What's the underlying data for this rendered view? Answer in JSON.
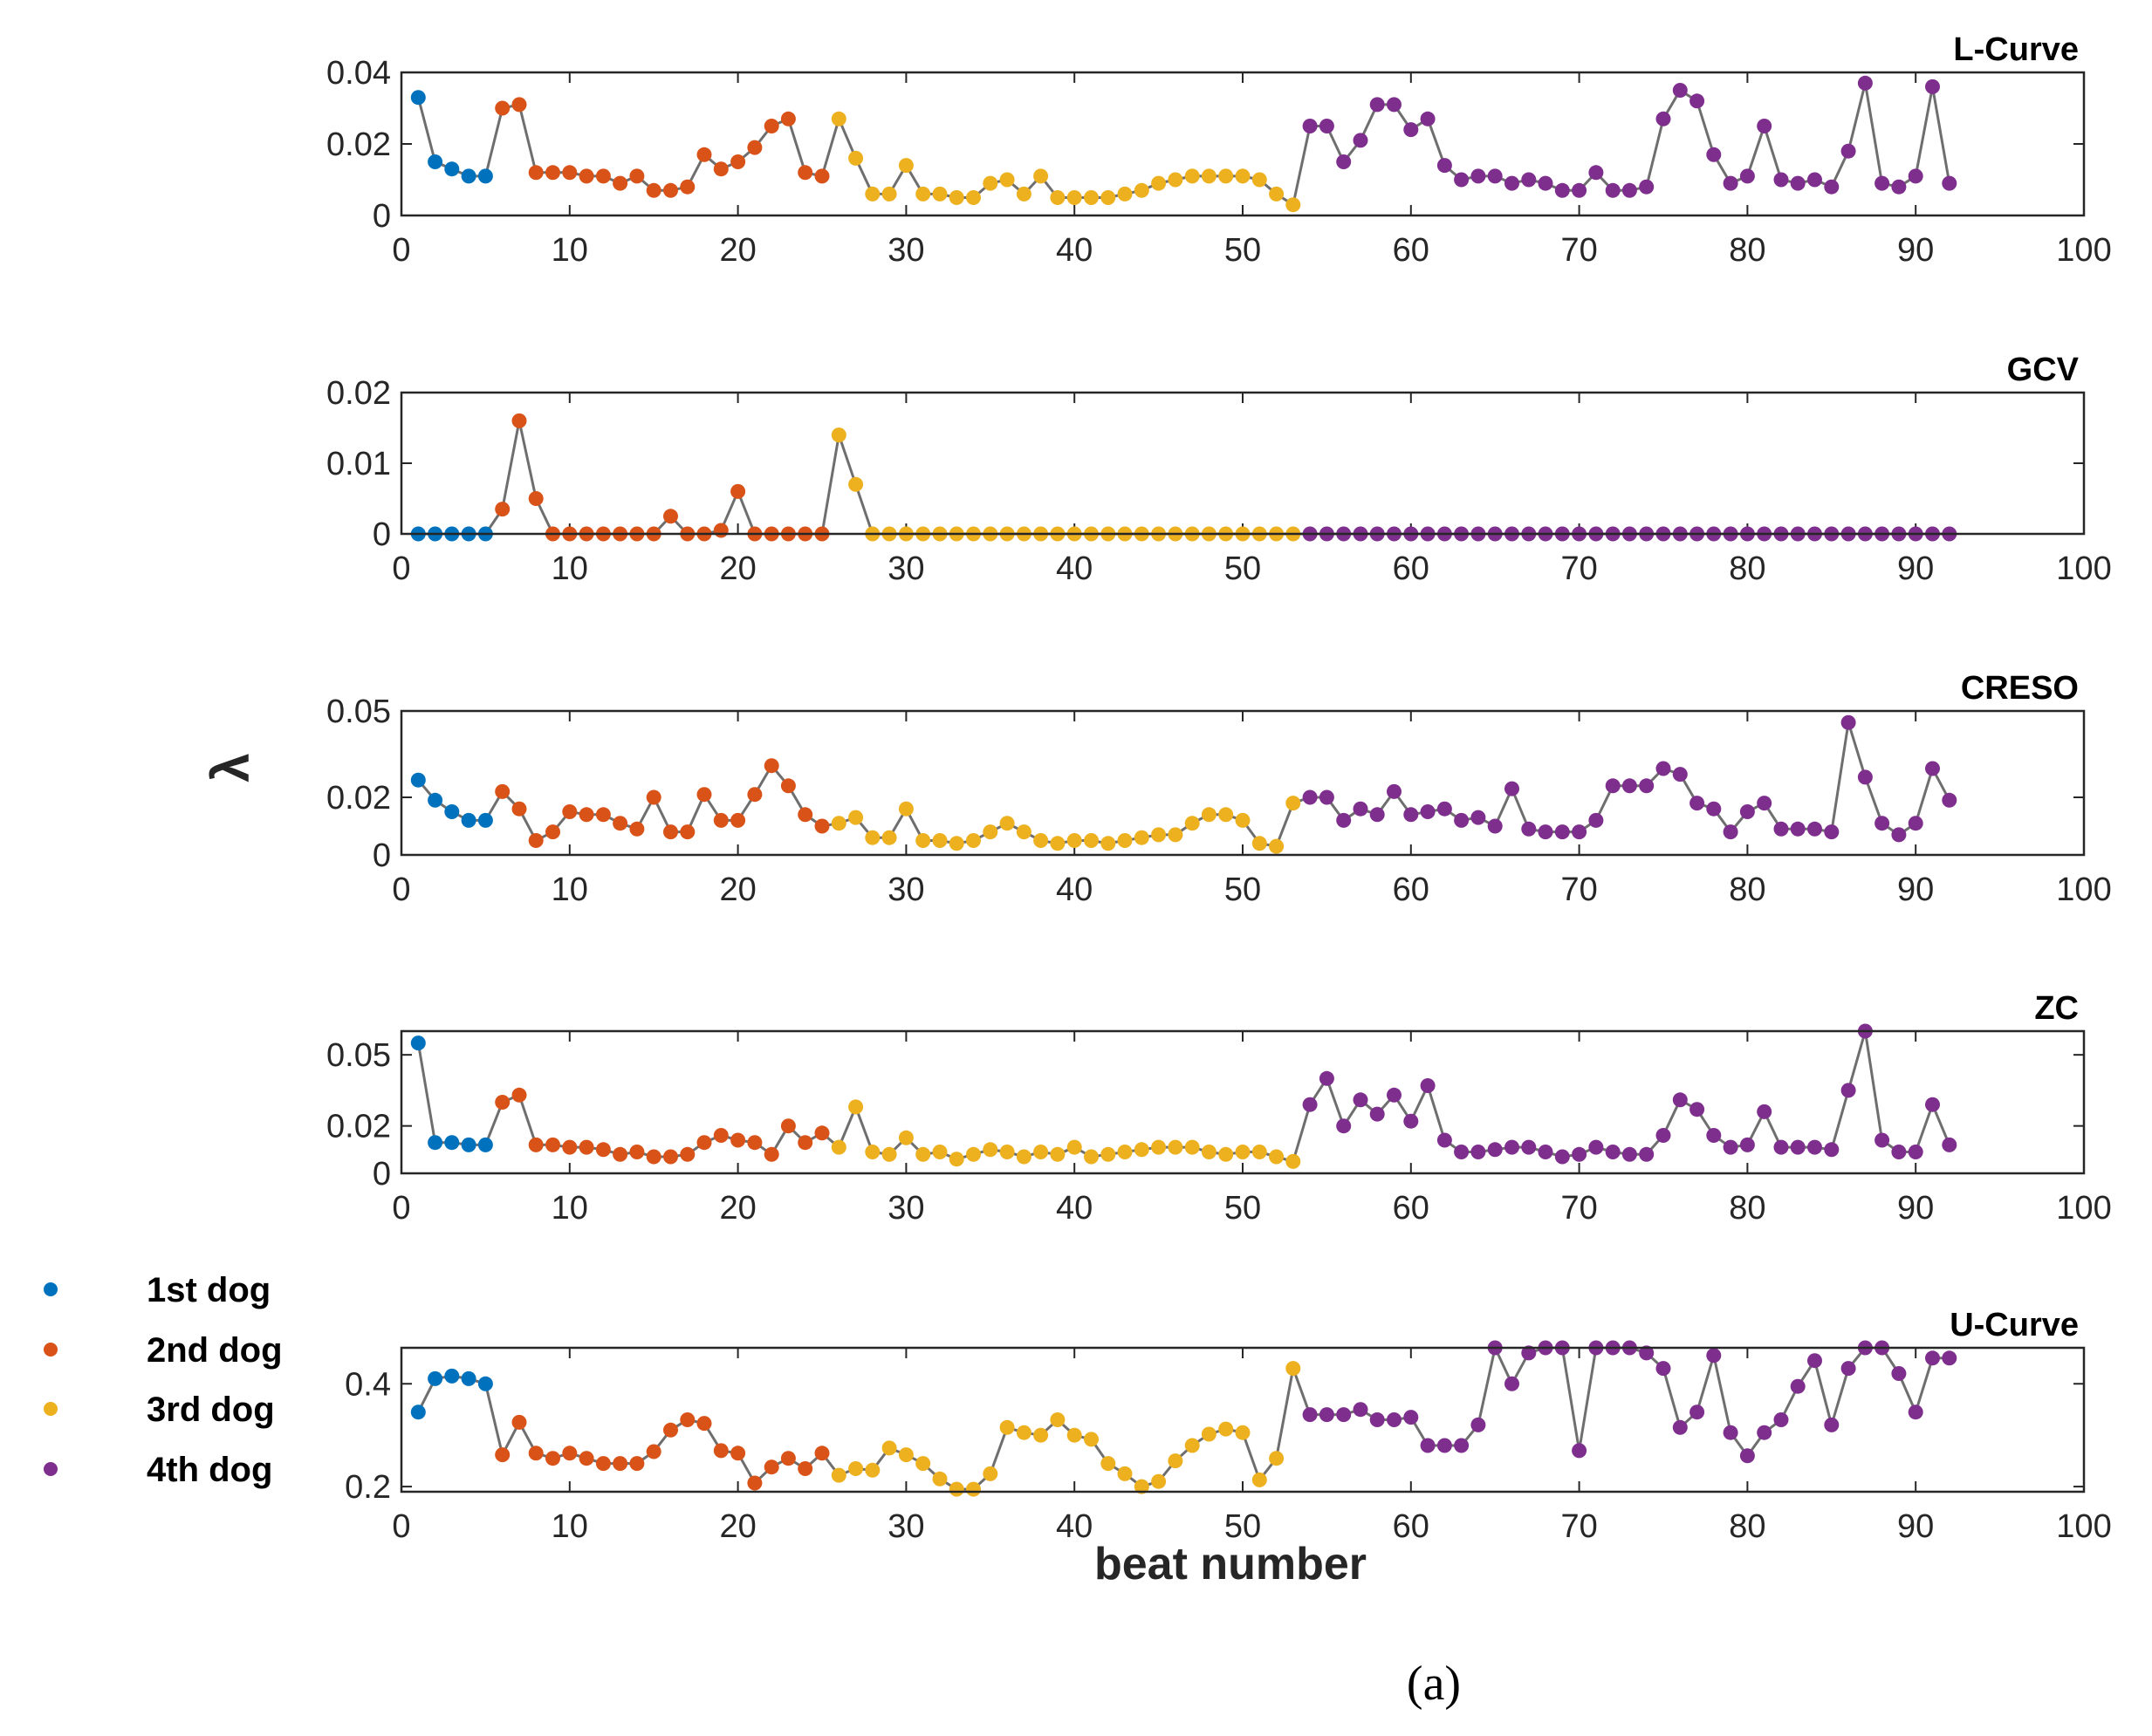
{
  "chart_data": {
    "type": "line",
    "xlabel": "beat number",
    "ylabel": "λ",
    "caption": "(a)",
    "x_ticks": [
      "0",
      "10",
      "20",
      "30",
      "40",
      "50",
      "60",
      "70",
      "80",
      "90",
      "100"
    ],
    "xlim": [
      0,
      100
    ],
    "legend": {
      "placement": "left",
      "entries": [
        {
          "name": "1st dog",
          "color": "#0072BD",
          "range": [
            1,
            5
          ]
        },
        {
          "name": "2nd dog",
          "color": "#D95319",
          "range": [
            6,
            25
          ]
        },
        {
          "name": "3rd dog",
          "color": "#EDB120",
          "range": [
            26,
            53
          ]
        },
        {
          "name": "4th dog",
          "color": "#7E2F8E",
          "range": [
            54,
            92
          ]
        }
      ]
    },
    "line_color": "#6e6e6e",
    "panels": [
      {
        "title": "L-Curve",
        "ylim": [
          0,
          0.04
        ],
        "yticks": [
          0,
          0.02,
          0.04
        ],
        "ytick_labels": [
          "0",
          "0.02",
          "0.04"
        ],
        "values": [
          0.033,
          0.015,
          0.013,
          0.011,
          0.011,
          0.03,
          0.031,
          0.012,
          0.012,
          0.012,
          0.011,
          0.011,
          0.009,
          0.011,
          0.007,
          0.007,
          0.008,
          0.017,
          0.013,
          0.015,
          0.019,
          0.025,
          0.027,
          0.012,
          0.011,
          0.027,
          0.016,
          0.006,
          0.006,
          0.014,
          0.006,
          0.006,
          0.005,
          0.005,
          0.009,
          0.01,
          0.006,
          0.011,
          0.005,
          0.005,
          0.005,
          0.005,
          0.006,
          0.007,
          0.009,
          0.01,
          0.011,
          0.011,
          0.011,
          0.011,
          0.01,
          0.006,
          0.003,
          0.025,
          0.025,
          0.015,
          0.021,
          0.031,
          0.031,
          0.024,
          0.027,
          0.014,
          0.01,
          0.011,
          0.011,
          0.009,
          0.01,
          0.009,
          0.007,
          0.007,
          0.012,
          0.007,
          0.007,
          0.008,
          0.027,
          0.035,
          0.032,
          0.017,
          0.009,
          0.011,
          0.025,
          0.01,
          0.009,
          0.01,
          0.008,
          0.018,
          0.037,
          0.009,
          0.008,
          0.011,
          0.036,
          0.009
        ]
      },
      {
        "title": "GCV",
        "ylim": [
          0,
          0.02
        ],
        "yticks": [
          0,
          0.01,
          0.02
        ],
        "ytick_labels": [
          "0",
          "0.01",
          "0.02"
        ],
        "values": [
          0,
          0,
          0,
          0,
          0,
          0.0035,
          0.016,
          0.005,
          0,
          0,
          0,
          0,
          0,
          0,
          0,
          0.0025,
          0,
          0,
          0.0005,
          0.006,
          0,
          0,
          0,
          0,
          0,
          0.014,
          0.007,
          0,
          0,
          0,
          0,
          0,
          0,
          0,
          0,
          0,
          0,
          0,
          0,
          0,
          0,
          0,
          0,
          0,
          0,
          0,
          0,
          0,
          0,
          0,
          0,
          0,
          0,
          0,
          0,
          0,
          0,
          0,
          0,
          0,
          0,
          0,
          0,
          0,
          0,
          0,
          0,
          0,
          0,
          0,
          0,
          0,
          0,
          0,
          0,
          0,
          0,
          0,
          0,
          0,
          0,
          0,
          0,
          0,
          0,
          0,
          0,
          0,
          0,
          0,
          0,
          0
        ]
      },
      {
        "title": "CRESO",
        "ylim": [
          0,
          0.05
        ],
        "yticks": [
          0,
          0.02,
          0.05
        ],
        "ytick_labels": [
          "0",
          "0.02",
          "0.05"
        ],
        "values": [
          0.026,
          0.019,
          0.015,
          0.012,
          0.012,
          0.022,
          0.016,
          0.005,
          0.008,
          0.015,
          0.014,
          0.014,
          0.011,
          0.009,
          0.02,
          0.008,
          0.008,
          0.021,
          0.012,
          0.012,
          0.021,
          0.031,
          0.024,
          0.014,
          0.01,
          0.011,
          0.013,
          0.006,
          0.006,
          0.016,
          0.005,
          0.005,
          0.004,
          0.005,
          0.008,
          0.011,
          0.008,
          0.005,
          0.004,
          0.005,
          0.005,
          0.004,
          0.005,
          0.006,
          0.007,
          0.007,
          0.011,
          0.014,
          0.014,
          0.012,
          0.004,
          0.003,
          0.018,
          0.02,
          0.02,
          0.012,
          0.016,
          0.014,
          0.022,
          0.014,
          0.015,
          0.016,
          0.012,
          0.013,
          0.01,
          0.023,
          0.009,
          0.008,
          0.008,
          0.008,
          0.012,
          0.024,
          0.024,
          0.024,
          0.03,
          0.028,
          0.018,
          0.016,
          0.008,
          0.015,
          0.018,
          0.009,
          0.009,
          0.009,
          0.008,
          0.046,
          0.027,
          0.011,
          0.007,
          0.011,
          0.03,
          0.019
        ]
      },
      {
        "title": "ZC",
        "ylim": [
          0,
          0.06
        ],
        "yticks": [
          0,
          0.02,
          0.05
        ],
        "ytick_labels": [
          "0",
          "0.02",
          "0.05"
        ],
        "values": [
          0.055,
          0.013,
          0.013,
          0.012,
          0.012,
          0.03,
          0.033,
          0.012,
          0.012,
          0.011,
          0.011,
          0.01,
          0.008,
          0.009,
          0.007,
          0.007,
          0.008,
          0.013,
          0.016,
          0.014,
          0.013,
          0.008,
          0.02,
          0.013,
          0.017,
          0.011,
          0.028,
          0.009,
          0.008,
          0.015,
          0.008,
          0.009,
          0.006,
          0.008,
          0.01,
          0.009,
          0.007,
          0.009,
          0.008,
          0.011,
          0.007,
          0.008,
          0.009,
          0.01,
          0.011,
          0.011,
          0.011,
          0.009,
          0.008,
          0.009,
          0.009,
          0.007,
          0.005,
          0.029,
          0.04,
          0.02,
          0.031,
          0.025,
          0.033,
          0.022,
          0.037,
          0.014,
          0.009,
          0.009,
          0.01,
          0.011,
          0.011,
          0.009,
          0.007,
          0.008,
          0.011,
          0.009,
          0.008,
          0.008,
          0.016,
          0.031,
          0.027,
          0.016,
          0.011,
          0.012,
          0.026,
          0.011,
          0.011,
          0.011,
          0.01,
          0.035,
          0.06,
          0.014,
          0.009,
          0.009,
          0.029,
          0.012
        ]
      },
      {
        "title": "U-Curve",
        "ylim": [
          0.19,
          0.47
        ],
        "yticks": [
          0.2,
          0.4
        ],
        "ytick_labels": [
          "0.2",
          "0.4"
        ],
        "values": [
          0.345,
          0.41,
          0.415,
          0.41,
          0.4,
          0.262,
          0.325,
          0.265,
          0.255,
          0.265,
          0.255,
          0.245,
          0.245,
          0.245,
          0.268,
          0.31,
          0.33,
          0.323,
          0.27,
          0.265,
          0.207,
          0.238,
          0.255,
          0.235,
          0.265,
          0.222,
          0.235,
          0.232,
          0.275,
          0.262,
          0.245,
          0.215,
          0.195,
          0.195,
          0.225,
          0.315,
          0.305,
          0.3,
          0.33,
          0.3,
          0.292,
          0.245,
          0.225,
          0.2,
          0.21,
          0.25,
          0.28,
          0.302,
          0.312,
          0.305,
          0.213,
          0.255,
          0.43,
          0.34,
          0.34,
          0.34,
          0.35,
          0.33,
          0.33,
          0.335,
          0.28,
          0.28,
          0.28,
          0.32,
          0.47,
          0.4,
          0.46,
          0.47,
          0.47,
          0.27,
          0.47,
          0.47,
          0.47,
          0.46,
          0.43,
          0.315,
          0.345,
          0.455,
          0.305,
          0.26,
          0.305,
          0.33,
          0.395,
          0.445,
          0.32,
          0.43,
          0.47,
          0.47,
          0.42,
          0.345,
          0.45,
          0.45
        ]
      }
    ]
  }
}
